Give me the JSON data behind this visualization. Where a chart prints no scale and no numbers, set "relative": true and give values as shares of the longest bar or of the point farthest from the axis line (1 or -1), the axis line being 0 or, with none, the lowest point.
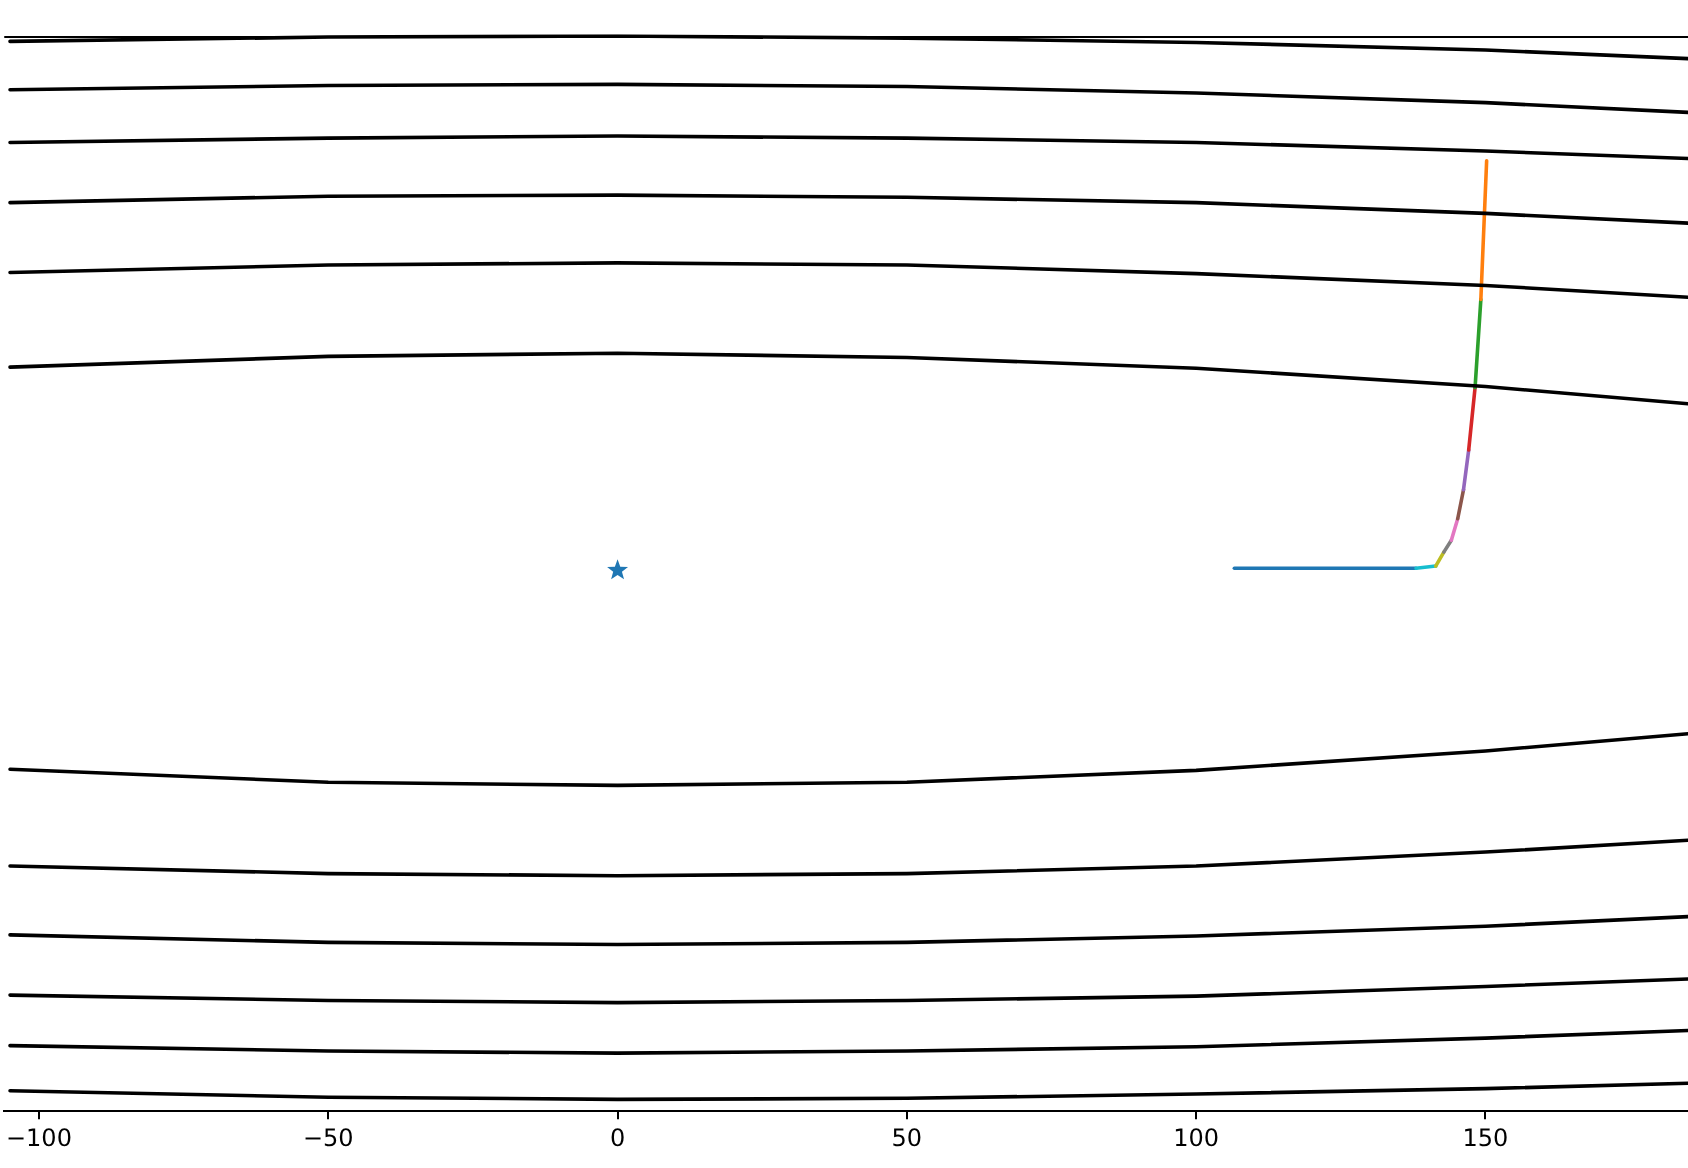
{
  "chart_data": {
    "type": "line",
    "relative": true,
    "xlim": [
      -106,
      185
    ],
    "xticks": [
      -100,
      -50,
      0,
      50,
      100,
      150
    ],
    "tick_labels": "x",
    "x": [
      -105,
      -50,
      0,
      50,
      100,
      150,
      185
    ],
    "series": [
      {
        "color": "#000000",
        "values": [
          0.995,
          0.999,
          1,
          0.998,
          0.994,
          0.987,
          0.979
        ]
      },
      {
        "color": "#000000",
        "values": [
          0.95,
          0.954,
          0.955,
          0.953,
          0.947,
          0.938,
          0.929
        ]
      },
      {
        "color": "#000000",
        "values": [
          0.901,
          0.905,
          0.907,
          0.905,
          0.901,
          0.893,
          0.886
        ]
      },
      {
        "color": "#000000",
        "values": [
          0.845,
          0.851,
          0.852,
          0.85,
          0.845,
          0.835,
          0.826
        ]
      },
      {
        "color": "#000000",
        "values": [
          0.78,
          0.787,
          0.789,
          0.787,
          0.779,
          0.768,
          0.757
        ]
      },
      {
        "color": "#000000",
        "values": [
          0.692,
          0.702,
          0.705,
          0.701,
          0.691,
          0.674,
          0.658
        ]
      },
      {
        "color": "#000000",
        "values": [
          0.318,
          0.306,
          0.303,
          0.306,
          0.317,
          0.335,
          0.351
        ]
      },
      {
        "color": "#000000",
        "values": [
          0.228,
          0.221,
          0.219,
          0.221,
          0.228,
          0.241,
          0.252
        ]
      },
      {
        "color": "#000000",
        "values": [
          0.164,
          0.157,
          0.155,
          0.157,
          0.163,
          0.172,
          0.181
        ]
      },
      {
        "color": "#000000",
        "values": [
          0.108,
          0.103,
          0.101,
          0.103,
          0.107,
          0.116,
          0.123
        ]
      },
      {
        "color": "#000000",
        "values": [
          0.061,
          0.056,
          0.054,
          0.056,
          0.06,
          0.068,
          0.075
        ]
      },
      {
        "color": "#000000",
        "values": [
          0.019,
          0.013,
          0.011,
          0.012,
          0.016,
          0.021,
          0.026
        ]
      },
      {
        "color": "#ff7f0e",
        "x": [
          150.2,
          149.2
        ],
        "values": [
          0.884,
          0.755
        ]
      },
      {
        "color": "#2ca02c",
        "x": [
          149.2,
          148.2
        ],
        "values": [
          0.755,
          0.673
        ]
      },
      {
        "color": "#d62728",
        "x": [
          148.2,
          147.1
        ],
        "values": [
          0.673,
          0.615
        ]
      },
      {
        "color": "#9467bd",
        "x": [
          147.1,
          146.2
        ],
        "values": [
          0.615,
          0.578
        ]
      },
      {
        "color": "#8c564b",
        "x": [
          146.2,
          145.2
        ],
        "values": [
          0.578,
          0.551
        ]
      },
      {
        "color": "#e377c2",
        "x": [
          145.2,
          144.1
        ],
        "values": [
          0.551,
          0.531
        ]
      },
      {
        "color": "#7f7f7f",
        "x": [
          144.1,
          142.8
        ],
        "values": [
          0.531,
          0.52
        ]
      },
      {
        "color": "#bcbd22",
        "x": [
          142.8,
          141.4
        ],
        "values": [
          0.52,
          0.507
        ]
      },
      {
        "color": "#17becf",
        "x": [
          141.4,
          138
        ],
        "values": [
          0.507,
          0.505
        ]
      },
      {
        "color": "#1f77b4",
        "x": [
          138,
          106.6
        ],
        "values": [
          0.505,
          0.505
        ]
      },
      {
        "type": "scatter",
        "marker": "star",
        "color": "#1f77b4",
        "x": [
          0
        ],
        "values": [
          0.503
        ]
      }
    ]
  }
}
